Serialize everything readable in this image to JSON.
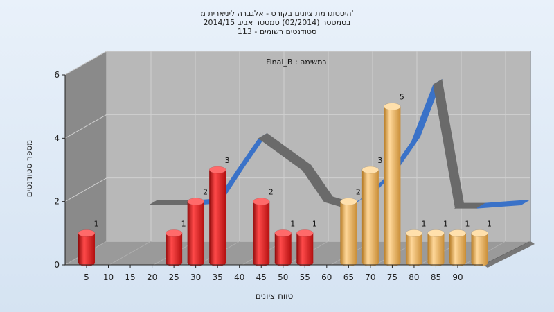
{
  "chart_data": {
    "type": "bar",
    "title_lines": [
      "היסטוגרמת ציונים בקורס - אלגברה ליניארית מ'",
      "בסמסטר  (02/2014)  סמסטר אביב 2014/15",
      "113 - סטודנטים רשומים"
    ],
    "annotation": "Final_B : במשימה",
    "ylabel": "מספר סטודנטים",
    "xlabel": "טווח ציונים",
    "x_ticks": [
      "5",
      "10",
      "15",
      "20",
      "25",
      "30",
      "35",
      "40",
      "45",
      "50",
      "55",
      "60",
      "65",
      "70",
      "75",
      "80",
      "85",
      "90"
    ],
    "y_ticks": [
      "0",
      "2",
      "4",
      "6"
    ],
    "ylim": [
      0,
      6
    ],
    "bars": [
      {
        "x": 5,
        "value": 1,
        "label": "1",
        "color": "red"
      },
      {
        "x": 25,
        "value": 1,
        "label": "1",
        "color": "red"
      },
      {
        "x": 30,
        "value": 2,
        "label": "2",
        "color": "red"
      },
      {
        "x": 35,
        "value": 3,
        "label": "3",
        "color": "red"
      },
      {
        "x": 45,
        "value": 2,
        "label": "2",
        "color": "red"
      },
      {
        "x": 50,
        "value": 1,
        "label": "1",
        "color": "red"
      },
      {
        "x": 55,
        "value": 1,
        "label": "1",
        "color": "red"
      },
      {
        "x": 65,
        "value": 2,
        "label": "2",
        "color": "gold"
      },
      {
        "x": 70,
        "value": 3,
        "label": "3",
        "color": "gold"
      },
      {
        "x": 75,
        "value": 5,
        "label": "5",
        "color": "gold"
      },
      {
        "x": 80,
        "value": 1,
        "label": "1",
        "color": "gold"
      },
      {
        "x": 85,
        "value": 1,
        "label": "1",
        "color": "gold"
      },
      {
        "x": 90,
        "value": 1,
        "label": "1",
        "color": "gold"
      },
      {
        "x": 95,
        "value": 1,
        "label": "1",
        "color": "gold"
      }
    ],
    "curve": [
      {
        "x": 15,
        "y": 1.5
      },
      {
        "x": 20,
        "y": 1.5
      },
      {
        "x": 25,
        "y": 1.5
      },
      {
        "x": 30,
        "y": 1.55
      },
      {
        "x": 35,
        "y": 2.6
      },
      {
        "x": 40,
        "y": 3.6
      },
      {
        "x": 45,
        "y": 3.1
      },
      {
        "x": 50,
        "y": 2.6
      },
      {
        "x": 55,
        "y": 1.6
      },
      {
        "x": 60,
        "y": 1.4
      },
      {
        "x": 65,
        "y": 1.8
      },
      {
        "x": 70,
        "y": 2.5
      },
      {
        "x": 75,
        "y": 3.5
      },
      {
        "x": 80,
        "y": 5.3
      },
      {
        "x": 85,
        "y": 1.4
      },
      {
        "x": 90,
        "y": 1.4
      },
      {
        "x": 95,
        "y": 1.45
      },
      {
        "x": 100,
        "y": 1.5
      }
    ],
    "colors": {
      "red": "#e01414",
      "gold": "#eba84a",
      "curve_blue": "#3a72c8",
      "curve_gray": "#6a6a6a",
      "wall": "#8a8a8a",
      "plot_back": "#b8b8b8",
      "floor": "#9a9a9a",
      "grid": "#d0d0d0"
    },
    "grid": true
  }
}
